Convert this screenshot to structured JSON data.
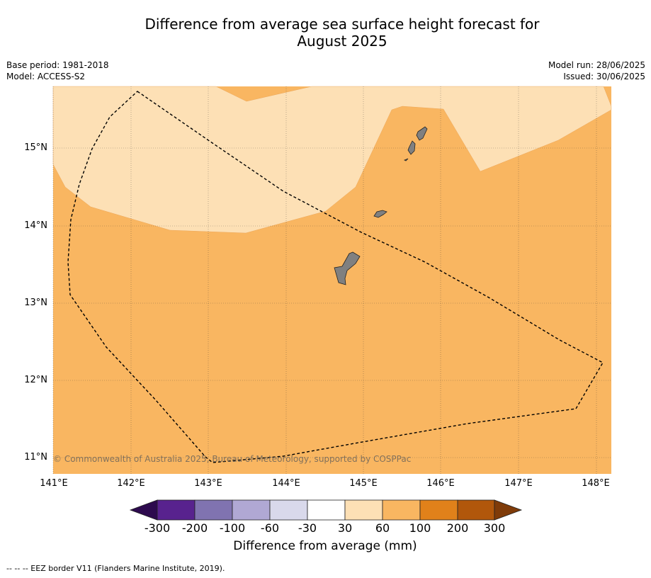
{
  "title_line1": "Difference from average sea surface height forecast for",
  "title_line2": "August 2025",
  "meta": {
    "base_period": "Base period: 1981-2018",
    "model": "Model: ACCESS-S2",
    "model_run": "Model run: 28/06/2025",
    "issued": "Issued: 30/06/2025"
  },
  "copyright": "© Commonwealth of Australia 2025, Bureau of Meteorology, supported by COSPPac",
  "lat_labels": [
    "15°N",
    "14°N",
    "13°N",
    "12°N",
    "11°N"
  ],
  "lon_labels": [
    "141°E",
    "142°E",
    "143°E",
    "144°E",
    "145°E",
    "146°E",
    "147°E",
    "148°E"
  ],
  "colorbar": {
    "labels": [
      "-300",
      "-200",
      "-100",
      "-60",
      "-30",
      "30",
      "60",
      "100",
      "200",
      "300"
    ],
    "colors": [
      "#2d0a4e",
      "#58228e",
      "#8073b0",
      "#b0a8d4",
      "#d9d9eb",
      "#ffffff",
      "#fde0b5",
      "#f9b661",
      "#e1811a",
      "#b1570b",
      "#7f3b09"
    ],
    "title": "Difference from average (mm)"
  },
  "map_colors": {
    "band_30_60": "#fde0b5",
    "band_60_100": "#f9b661",
    "land": "#808080"
  },
  "footnote": "--  --  -- EEZ border V11 (Flanders Marine Institute, 2019)."
}
